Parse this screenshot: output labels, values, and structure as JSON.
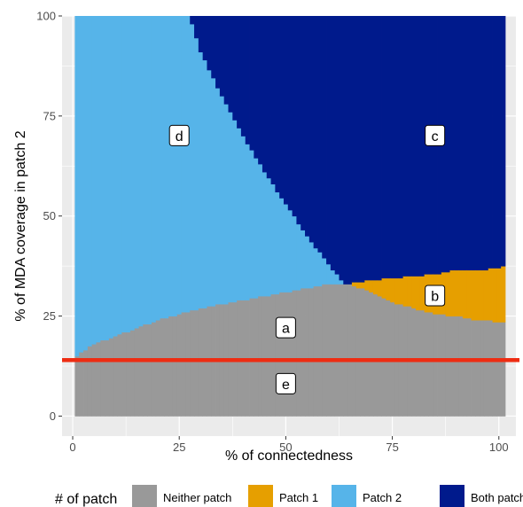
{
  "chart_data": {
    "type": "area",
    "xlabel": "% of connectedness",
    "ylabel": "% of MDA coverage in patch 2",
    "xlim": [
      -2.5,
      104
    ],
    "ylim": [
      -5,
      100
    ],
    "x_ticks": [
      0,
      25,
      50,
      75,
      100
    ],
    "y_ticks": [
      0,
      25,
      50,
      75,
      100
    ],
    "x_tick_labels": [
      "0",
      "25",
      "50",
      "75",
      "100"
    ],
    "y_tick_labels": [
      "0",
      "25",
      "50",
      "75",
      "100"
    ],
    "grid": true,
    "legend": {
      "title": "# of patch",
      "position": "bottom",
      "entries": [
        {
          "name": "Neither patch",
          "color": "#999999"
        },
        {
          "name": "Patch 1",
          "color": "#E69F00"
        },
        {
          "name": "Patch 2",
          "color": "#56B4E9"
        },
        {
          "name": "Both patches",
          "color": "#001A8C"
        }
      ]
    },
    "x_domain": [
      1,
      101
    ],
    "y_domain": [
      0,
      100
    ],
    "boundaries": {
      "neither_top": [
        [
          1,
          15
        ],
        [
          5,
          18
        ],
        [
          10,
          20
        ],
        [
          15,
          22
        ],
        [
          20,
          24
        ],
        [
          25,
          25.5
        ],
        [
          30,
          27
        ],
        [
          35,
          28
        ],
        [
          40,
          29
        ],
        [
          45,
          30
        ],
        [
          50,
          31
        ],
        [
          55,
          32
        ],
        [
          60,
          33
        ],
        [
          65,
          33
        ],
        [
          70,
          31
        ],
        [
          75,
          28.5
        ],
        [
          80,
          27
        ],
        [
          85,
          25.5
        ],
        [
          90,
          25
        ],
        [
          95,
          24
        ],
        [
          101,
          23.5
        ]
      ],
      "patch1_top": [
        [
          64,
          33
        ],
        [
          70,
          34
        ],
        [
          75,
          34.5
        ],
        [
          80,
          35
        ],
        [
          85,
          35.5
        ],
        [
          90,
          36.5
        ],
        [
          95,
          36.5
        ],
        [
          100,
          37
        ],
        [
          101,
          37.5
        ]
      ],
      "both_lower_left": [
        [
          27.5,
          100
        ],
        [
          30,
          91
        ],
        [
          35,
          80
        ],
        [
          40,
          70
        ],
        [
          45,
          61
        ],
        [
          50,
          53
        ],
        [
          55,
          45
        ],
        [
          60,
          38
        ],
        [
          63,
          34
        ],
        [
          64,
          33
        ]
      ]
    },
    "series": [
      {
        "name": "Neither patch"
      },
      {
        "name": "Patch 1"
      },
      {
        "name": "Patch 2"
      },
      {
        "name": "Both patches"
      }
    ],
    "annotations": [
      {
        "label": "a",
        "x": 50,
        "y": 22
      },
      {
        "label": "b",
        "x": 85,
        "y": 30
      },
      {
        "label": "c",
        "x": 85,
        "y": 70
      },
      {
        "label": "d",
        "x": 25,
        "y": 70
      },
      {
        "label": "e",
        "x": 50,
        "y": 8
      }
    ],
    "hline": {
      "y": 14,
      "color": "#EE2C12"
    }
  }
}
